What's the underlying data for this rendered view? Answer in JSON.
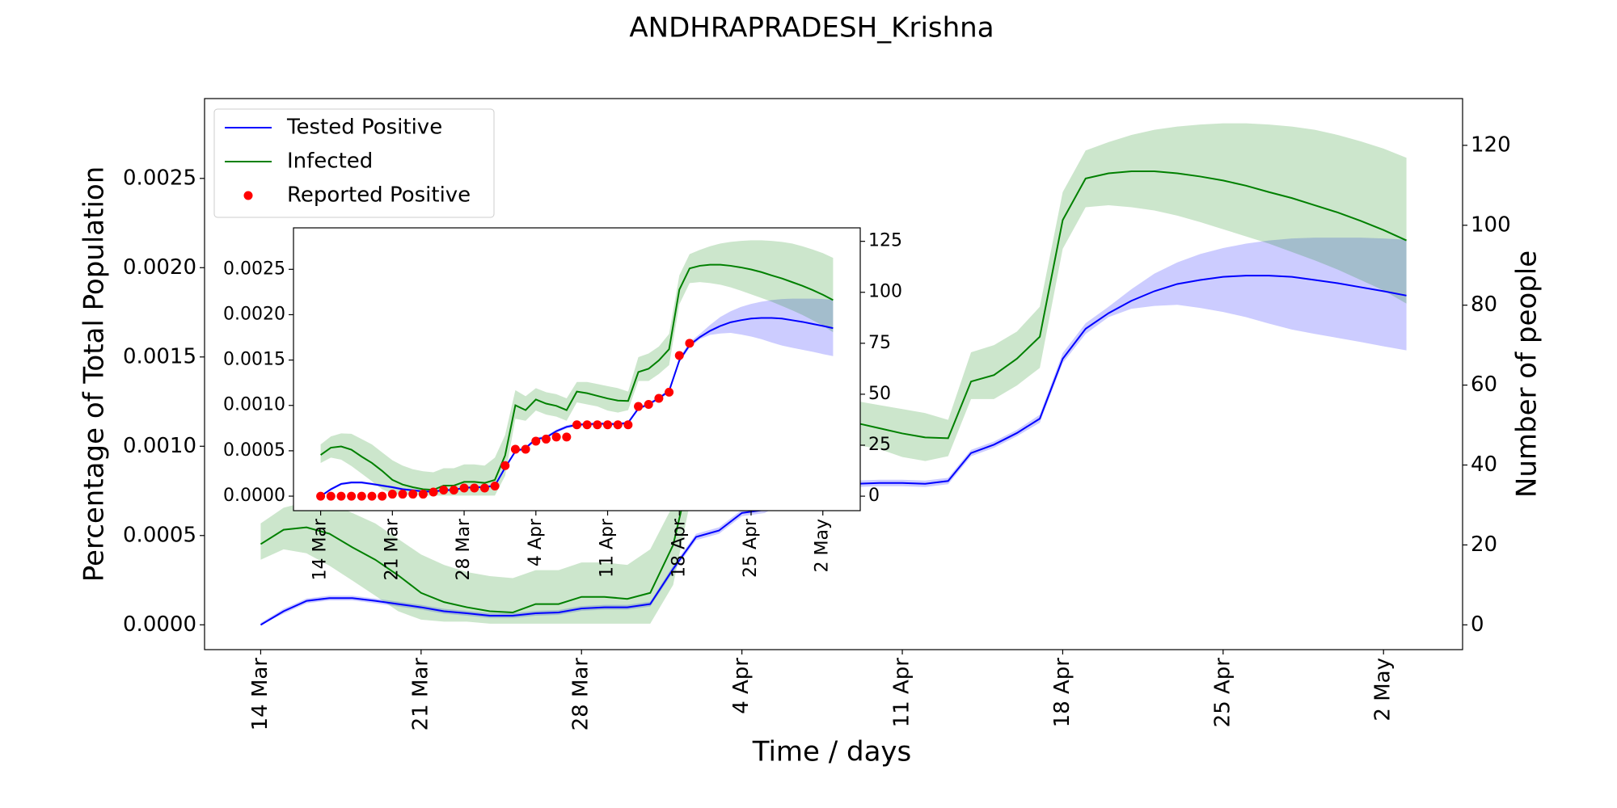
{
  "chart_data": [
    {
      "type": "line",
      "title": "ANDHRAPRADESH_Krishna",
      "x_label": "Time / days",
      "y_label": "Percentage of Total Population",
      "y2_label": "Number of people",
      "categories": [
        "14 Mar",
        null,
        null,
        null,
        null,
        null,
        null,
        "21 Mar",
        null,
        null,
        null,
        null,
        null,
        null,
        "28 Mar",
        null,
        null,
        null,
        null,
        null,
        null,
        "4 Apr",
        null,
        null,
        null,
        null,
        null,
        null,
        "11 Apr",
        null,
        null,
        null,
        null,
        null,
        null,
        "18 Apr",
        null,
        null,
        null,
        null,
        null,
        null,
        "25 Apr",
        null,
        null,
        null,
        null,
        null,
        null,
        "2 May",
        null
      ],
      "series": [
        {
          "name": "Tested Positive",
          "type": "line",
          "color": "#0000ff",
          "axis": "y2",
          "values": [
            0,
            3.4,
            6.0,
            6.7,
            6.7,
            6.0,
            5.2,
            4.4,
            3.4,
            2.9,
            2.3,
            2.3,
            2.9,
            3.1,
            4.1,
            4.4,
            4.4,
            5.2,
            14.0,
            22.0,
            23.6,
            28.0,
            28.8,
            31.9,
            34.0,
            35.0,
            35.3,
            35.5,
            35.5,
            35.3,
            36.0,
            43.0,
            45.1,
            48.0,
            51.6,
            66.6,
            74.1,
            78.0,
            81.1,
            83.5,
            85.3,
            86.3,
            87.1,
            87.4,
            87.4,
            87.1,
            86.3,
            85.5,
            84.5,
            83.5,
            82.4
          ],
          "upper": [
            0.5,
            4.0,
            6.6,
            7.3,
            7.3,
            6.6,
            5.8,
            5.0,
            4.0,
            3.5,
            2.9,
            2.9,
            3.5,
            3.7,
            4.7,
            5.0,
            5.0,
            5.8,
            14.8,
            22.8,
            24.4,
            28.8,
            29.6,
            32.7,
            34.8,
            35.8,
            36.1,
            36.3,
            36.3,
            36.1,
            36.8,
            43.8,
            45.9,
            48.8,
            52.6,
            68.0,
            75.5,
            79.6,
            84.0,
            87.9,
            90.7,
            92.8,
            94.3,
            95.4,
            96.2,
            96.7,
            96.9,
            96.9,
            96.9,
            96.7,
            96.4
          ],
          "lower": [
            0,
            2.8,
            5.4,
            6.1,
            6.1,
            5.4,
            4.6,
            3.8,
            2.8,
            2.3,
            1.7,
            1.7,
            2.3,
            2.5,
            3.5,
            3.8,
            3.8,
            4.6,
            13.2,
            21.2,
            22.8,
            27.2,
            28.0,
            31.1,
            33.2,
            34.2,
            34.5,
            34.7,
            34.7,
            34.5,
            35.2,
            42.2,
            44.3,
            47.2,
            50.6,
            65.5,
            72.8,
            77.0,
            79.1,
            79.8,
            80.1,
            79.3,
            78.3,
            77.0,
            75.4,
            73.9,
            72.8,
            71.8,
            70.8,
            69.7,
            68.7
          ]
        },
        {
          "name": "Infected",
          "type": "line",
          "color": "#008000",
          "axis": "y2",
          "values": [
            20.2,
            23.8,
            24.4,
            22.8,
            19.4,
            16.3,
            12.4,
            8.0,
            5.7,
            4.4,
            3.4,
            3.1,
            5.2,
            5.2,
            7.0,
            7.0,
            6.5,
            8.0,
            20.0,
            44.6,
            42.2,
            47.4,
            45.4,
            44.3,
            42.2,
            51.3,
            50.5,
            49.2,
            47.9,
            46.9,
            46.7,
            60.9,
            62.5,
            66.6,
            72.1,
            101.3,
            111.7,
            113.0,
            113.5,
            113.5,
            113.0,
            112.2,
            111.2,
            109.9,
            108.3,
            106.8,
            105.0,
            103.2,
            101.1,
            98.8,
            96.2
          ],
          "upper": [
            25.4,
            29.3,
            30.8,
            30.6,
            28.0,
            25.4,
            21.5,
            17.6,
            15.0,
            13.2,
            12.2,
            11.7,
            13.7,
            13.7,
            15.6,
            15.6,
            15.0,
            18.9,
            30.0,
            52.0,
            49.0,
            53.0,
            51.0,
            50.0,
            48.0,
            56.0,
            56.0,
            55.0,
            54.0,
            53.0,
            51.3,
            68.2,
            70.0,
            73.4,
            79.6,
            108.3,
            118.7,
            120.8,
            122.6,
            123.9,
            124.7,
            125.2,
            125.5,
            125.5,
            125.2,
            124.7,
            123.9,
            122.6,
            121.0,
            119.2,
            116.9
          ],
          "lower": [
            16.3,
            18.9,
            17.9,
            14.8,
            11.1,
            7.3,
            3.4,
            1.3,
            0.8,
            0.8,
            0.3,
            0.3,
            0.3,
            0.3,
            0.3,
            0.3,
            0.3,
            0.3,
            10.0,
            38.0,
            37.0,
            42.0,
            40.0,
            39.0,
            37.0,
            46.0,
            45.0,
            44.0,
            42.0,
            41.0,
            42.2,
            56.5,
            56.5,
            59.9,
            64.3,
            94.1,
            104.5,
            105.0,
            104.5,
            103.7,
            102.4,
            100.8,
            99.0,
            97.2,
            95.4,
            93.3,
            91.2,
            88.9,
            86.3,
            83.7,
            80.4
          ]
        },
        {
          "name": "Reported Positive",
          "type": "scatter",
          "color": "#ff0000",
          "axis": "y2",
          "values": [
            0,
            0,
            0,
            0,
            0,
            0,
            0,
            1,
            1,
            1,
            1,
            2,
            3,
            3,
            4,
            4,
            4,
            5,
            15,
            23,
            23,
            27,
            28,
            29,
            29,
            35,
            35,
            35,
            35,
            35,
            35,
            44,
            45,
            48,
            51,
            69,
            75,
            null,
            null,
            null,
            null,
            null,
            null,
            null,
            null,
            null,
            null,
            null,
            null,
            null,
            null
          ]
        }
      ],
      "ylim": [
        -0.000139,
        0.002947
      ],
      "yticks": [
        {
          "value": 0,
          "label": "0.0000"
        },
        {
          "value": 0.0005,
          "label": "0.0005"
        },
        {
          "value": 0.001,
          "label": "0.0010"
        },
        {
          "value": 0.0015,
          "label": "0.0015"
        },
        {
          "value": 0.002,
          "label": "0.0020"
        },
        {
          "value": 0.0025,
          "label": "0.0025"
        }
      ],
      "y2lim": [
        -6.2,
        131.7
      ],
      "y2ticks": [
        0,
        20,
        40,
        60,
        80,
        100,
        120
      ],
      "legend": "upper left"
    },
    {
      "type": "line",
      "ylim": [
        -0.00016,
        0.002957
      ],
      "yticks": [
        {
          "value": 0,
          "label": "0.0000"
        },
        {
          "value": 0.0005,
          "label": "0.0005"
        },
        {
          "value": 0.001,
          "label": "0.0010"
        },
        {
          "value": 0.0015,
          "label": "0.0015"
        },
        {
          "value": 0.002,
          "label": "0.0020"
        },
        {
          "value": 0.0025,
          "label": "0.0025"
        }
      ],
      "y2lim": [
        -7.1,
        131.6
      ],
      "y2ticks": [
        0,
        25,
        50,
        75,
        100,
        125
      ]
    }
  ]
}
